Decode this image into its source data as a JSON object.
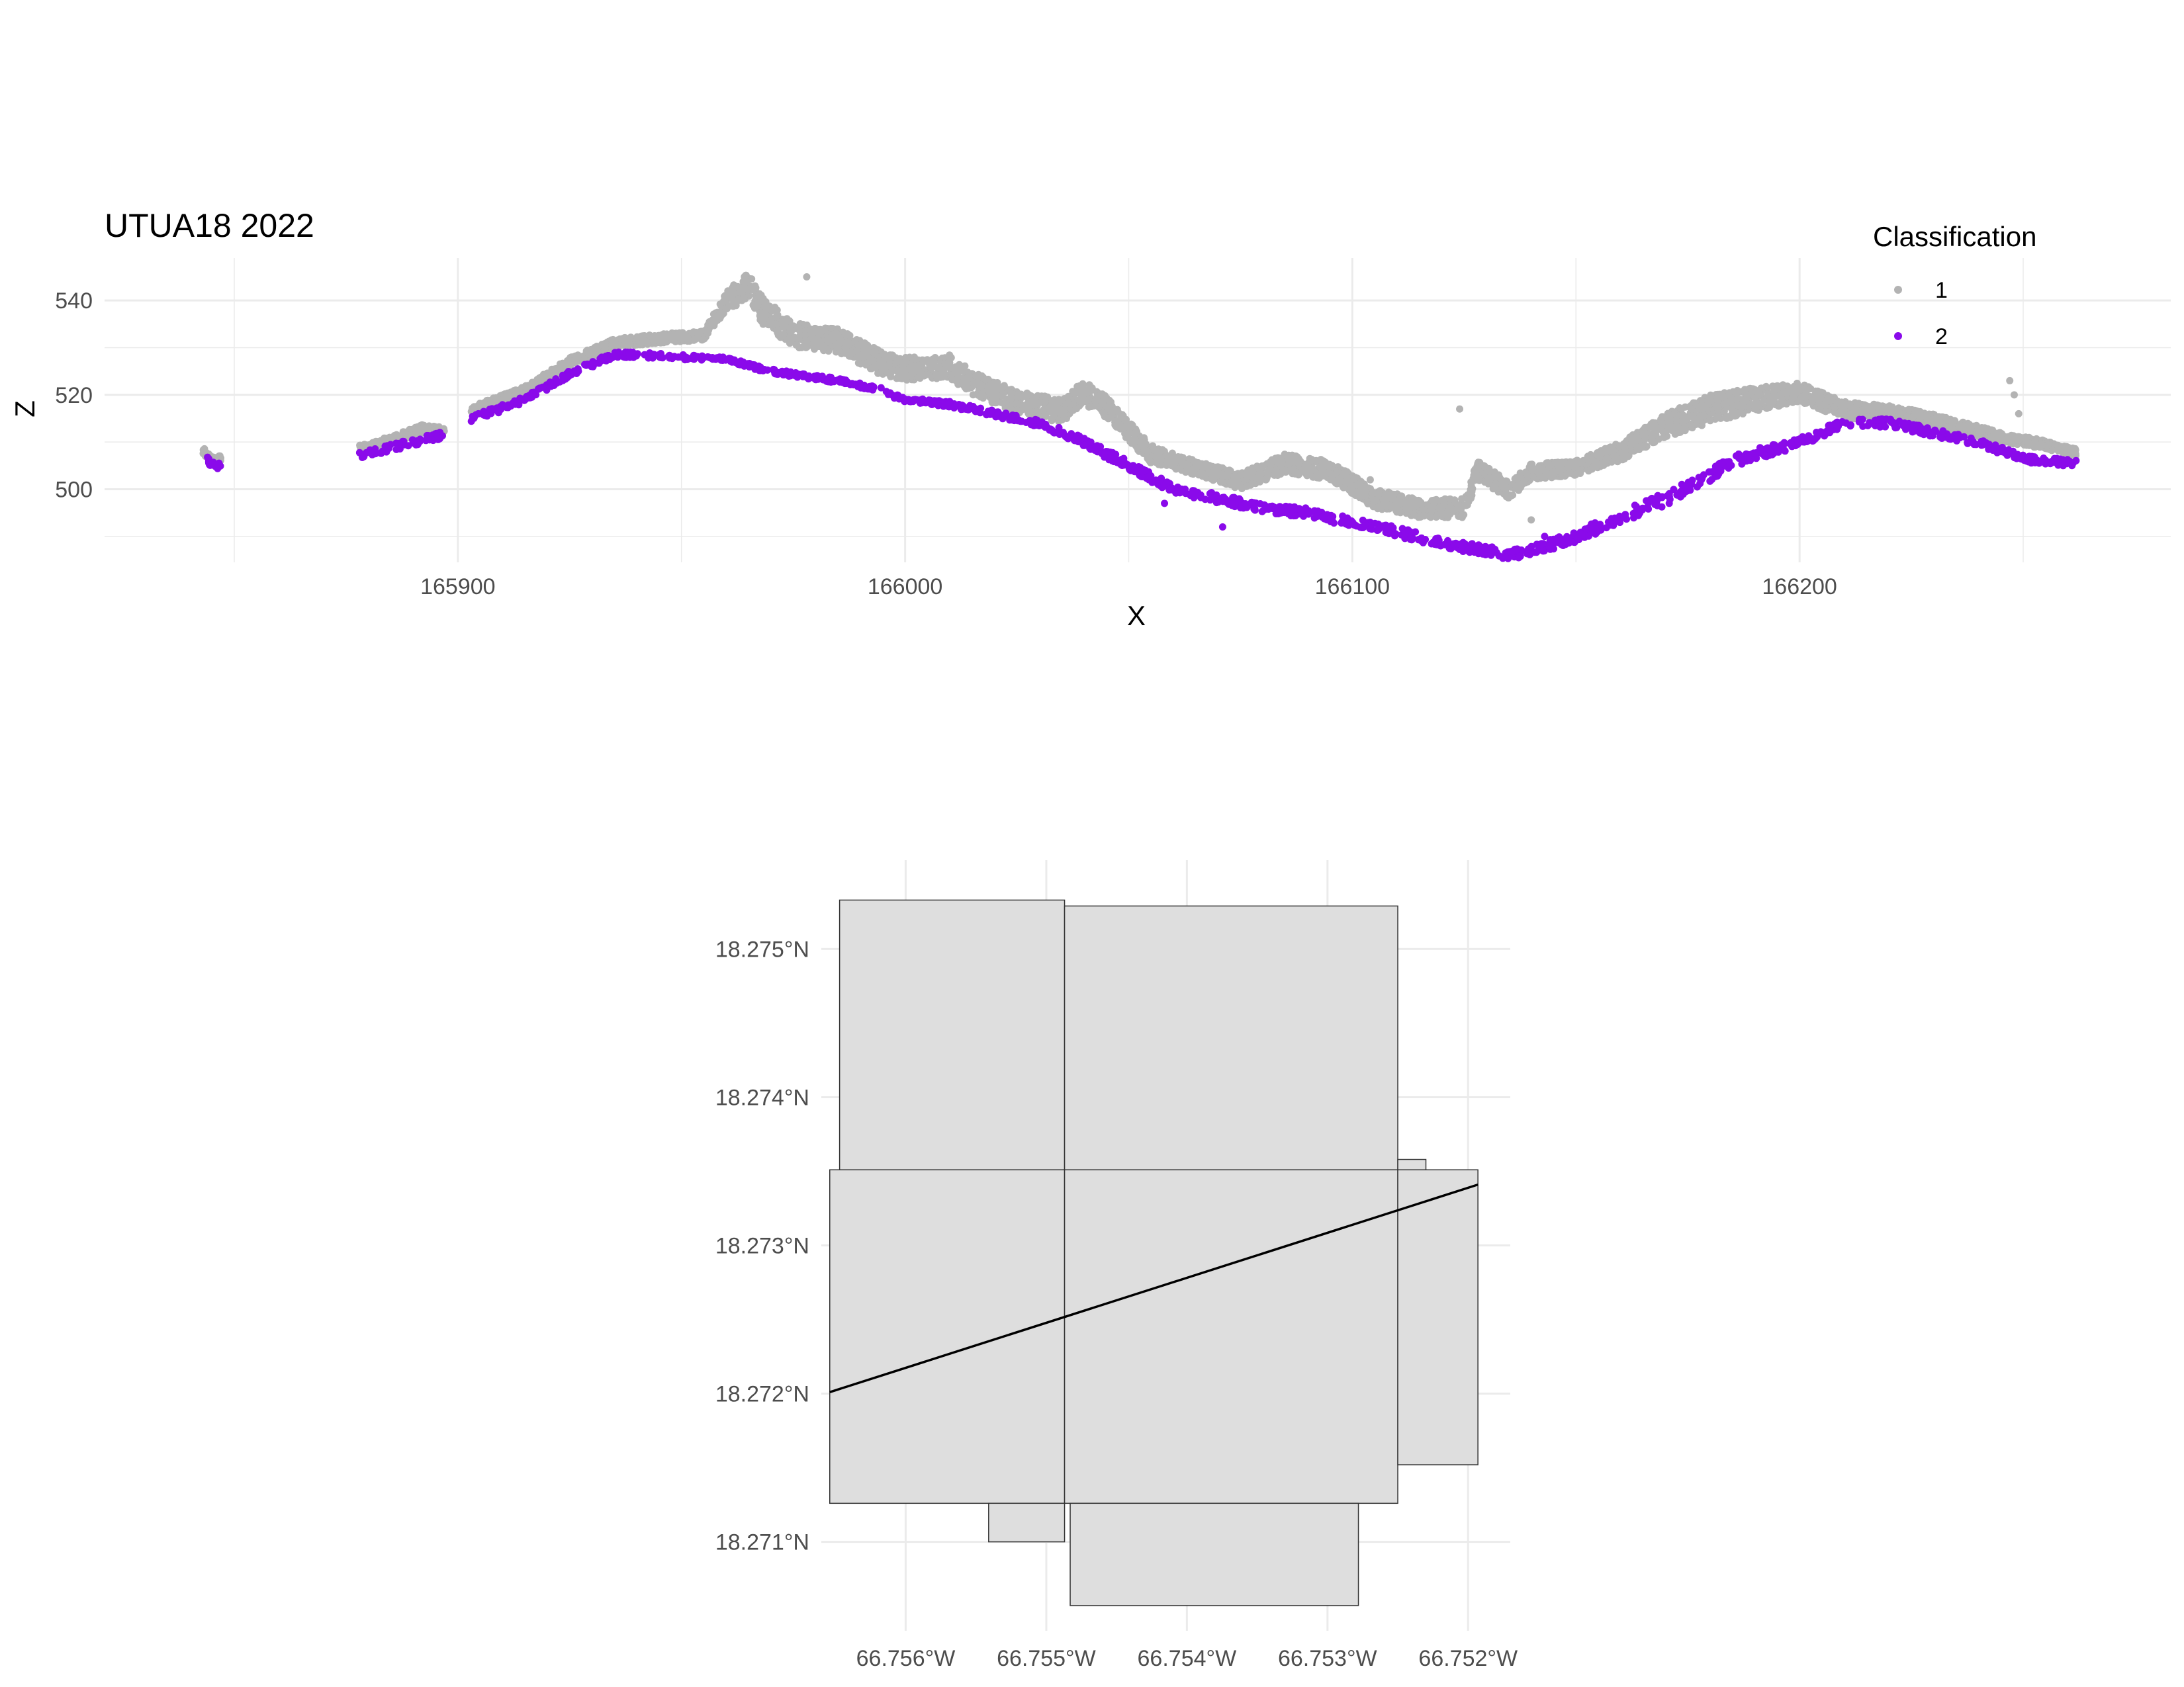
{
  "chart_data": [
    {
      "type": "scatter",
      "title": "UTUA18 2022",
      "xlabel": "X",
      "ylabel": "Z",
      "xlim": [
        165821,
        166283
      ],
      "ylim": [
        484.5,
        549
      ],
      "x_ticks": [
        165900,
        166000,
        166100,
        166200
      ],
      "y_ticks": [
        500,
        520,
        540
      ],
      "grid": true,
      "legend": {
        "title": "Classification",
        "position": "top-right",
        "entries": [
          "1",
          "2"
        ]
      },
      "colors": {
        "1": "#B3B3B3",
        "2": "#8A0AEA"
      },
      "series": [
        {
          "name": "1",
          "color": "#B3B3B3",
          "profile": [
            [
              165843,
              507.5
            ],
            [
              165845,
              505.5
            ],
            [
              165880,
              508
            ],
            [
              165892,
              512
            ],
            [
              165896,
              511.5
            ],
            [
              165905,
              516.5
            ],
            [
              165915,
              520
            ],
            [
              165925,
              526
            ],
            [
              165935,
              530
            ],
            [
              165945,
              531
            ],
            [
              165955,
              531.5
            ],
            [
              165960,
              538
            ],
            [
              165965,
              540
            ],
            [
              165968,
              535
            ],
            [
              165975,
              530
            ],
            [
              165985,
              529
            ],
            [
              165995,
              524
            ],
            [
              166000,
              523
            ],
            [
              166005,
              523
            ],
            [
              166010,
              523.5
            ],
            [
              166015,
              520
            ],
            [
              166025,
              516
            ],
            [
              166035,
              514
            ],
            [
              166040,
              518
            ],
            [
              166045,
              515
            ],
            [
              166055,
              505.5
            ],
            [
              166065,
              503
            ],
            [
              166075,
              500
            ],
            [
              166085,
              503.5
            ],
            [
              166095,
              502
            ],
            [
              166105,
              496
            ],
            [
              166115,
              494
            ],
            [
              166125,
              494
            ],
            [
              166128,
              502
            ],
            [
              166135,
              498
            ],
            [
              166140,
              502
            ],
            [
              166150,
              503
            ],
            [
              166160,
              506
            ],
            [
              166170,
              511
            ],
            [
              166180,
              514
            ],
            [
              166190,
              516.5
            ],
            [
              166200,
              518.5
            ],
            [
              166210,
              515
            ],
            [
              166220,
              514.5
            ],
            [
              166228,
              513.5
            ],
            [
              166235,
              512
            ],
            [
              166245,
              510
            ],
            [
              166255,
              508.5
            ],
            [
              166262,
              507
            ]
          ],
          "spread": [
            [
              165843,
              1.5
            ],
            [
              165955,
              2
            ],
            [
              165965,
              6
            ],
            [
              165980,
              5
            ],
            [
              166005,
              5
            ],
            [
              166040,
              5
            ],
            [
              166065,
              3
            ],
            [
              166085,
              4
            ],
            [
              166128,
              4
            ],
            [
              166150,
              3
            ],
            [
              166180,
              6
            ],
            [
              166200,
              4
            ],
            [
              166262,
              1.5
            ]
          ],
          "outliers": [
            [
              165978,
              545
            ],
            [
              166124,
              517
            ],
            [
              166104,
              502
            ],
            [
              166090,
              503
            ],
            [
              166140,
              493.5
            ],
            [
              166247,
              523
            ],
            [
              166248,
              520
            ],
            [
              166249,
              516
            ],
            [
              166249,
              511
            ]
          ]
        },
        {
          "name": "2",
          "color": "#8A0AEA",
          "profile": [
            [
              165844,
              506.5
            ],
            [
              165845,
              505
            ],
            [
              165880,
              507.5
            ],
            [
              165890,
              510
            ],
            [
              165895,
              511
            ],
            [
              165905,
              515.5
            ],
            [
              165915,
              519
            ],
            [
              165925,
              524.5
            ],
            [
              165935,
              528.5
            ],
            [
              165940,
              528.5
            ],
            [
              165950,
              528
            ],
            [
              165960,
              527.5
            ],
            [
              165970,
              525
            ],
            [
              165985,
              523
            ],
            [
              165995,
              521
            ],
            [
              165995,
              520.5
            ],
            [
              166000,
              519
            ],
            [
              166010,
              518
            ],
            [
              166020,
              516
            ],
            [
              166030,
              514
            ],
            [
              166040,
              510
            ],
            [
              166050,
              505
            ],
            [
              166060,
              500
            ],
            [
              166070,
              498
            ],
            [
              166080,
              496
            ],
            [
              166090,
              495
            ],
            [
              166100,
              493
            ],
            [
              166110,
              491
            ],
            [
              166120,
              488.5
            ],
            [
              166130,
              487
            ],
            [
              166135,
              486
            ],
            [
              166140,
              487
            ],
            [
              166150,
              490
            ],
            [
              166160,
              494
            ],
            [
              166170,
              498
            ],
            [
              166180,
              503
            ],
            [
              166185,
              506
            ],
            [
              166200,
              510
            ],
            [
              166210,
              514
            ],
            [
              166220,
              514
            ],
            [
              166230,
              512
            ],
            [
              166240,
              510
            ],
            [
              166250,
              506.5
            ],
            [
              166262,
              505.5
            ]
          ],
          "spread": [
            [
              165843,
              1.5
            ],
            [
              165900,
              1.5
            ],
            [
              165960,
              1
            ],
            [
              166000,
              1
            ],
            [
              166050,
              2
            ],
            [
              166100,
              2
            ],
            [
              166135,
              2
            ],
            [
              166170,
              3
            ],
            [
              166200,
              2
            ],
            [
              166262,
              1.5
            ]
          ],
          "outliers": [
            [
              166058,
              497
            ],
            [
              166071,
              492
            ],
            [
              166143,
              490
            ]
          ]
        }
      ]
    },
    {
      "type": "map",
      "x_ticks": [
        "66.756°W",
        "66.755°W",
        "66.754°W",
        "66.753°W",
        "66.752°W"
      ],
      "x_values": [
        -66.756,
        -66.755,
        -66.754,
        -66.753,
        -66.752
      ],
      "y_ticks": [
        "18.275°N",
        "18.274°N",
        "18.273°N",
        "18.272°N",
        "18.271°N"
      ],
      "y_values": [
        18.275,
        18.274,
        18.273,
        18.272,
        18.271
      ],
      "xlim": [
        -66.7566,
        -66.7517
      ],
      "ylim": [
        18.2704,
        18.2756
      ],
      "grid": true,
      "fill_color": "#DEDEDE",
      "tiles": [
        [
          -66.75647,
          -66.75487,
          18.27351,
          18.27533
        ],
        [
          -66.75487,
          -66.7525,
          18.27351,
          18.27529
        ],
        [
          -66.75654,
          -66.75487,
          18.27126,
          18.27351
        ],
        [
          -66.75487,
          -66.7525,
          18.27126,
          18.27351
        ],
        [
          -66.7525,
          -66.75193,
          18.27152,
          18.27351
        ],
        [
          -66.7525,
          -66.7523,
          18.27351,
          18.27358
        ],
        [
          -66.75541,
          -66.75487,
          18.271,
          18.27126
        ],
        [
          -66.75483,
          -66.75278,
          18.27057,
          18.27126
        ]
      ],
      "line": [
        [
          -66.75654,
          18.27201
        ],
        [
          -66.75193,
          18.27341
        ]
      ]
    }
  ]
}
